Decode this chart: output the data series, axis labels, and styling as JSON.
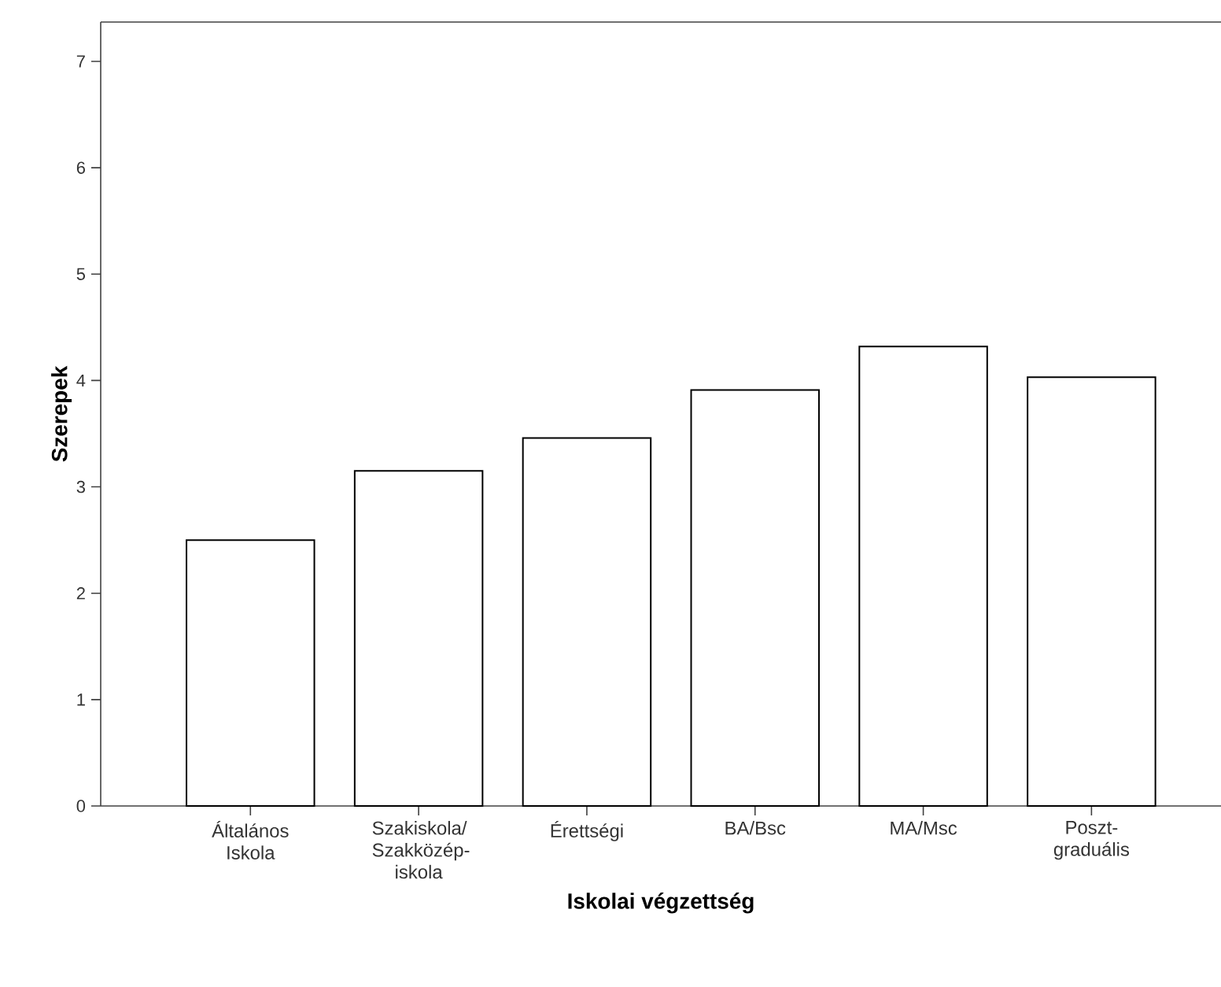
{
  "chart_data": {
    "type": "bar",
    "xlabel": "Iskolai végzettség",
    "ylabel": "Szerepek",
    "categories": [
      "Általános Iskola",
      "Szakiskola/ Szakközép- iskola",
      "Érettségi",
      "BA/Bsc",
      "MA/Msc",
      "Poszt- graduális"
    ],
    "values": [
      2.5,
      3.15,
      3.46,
      3.91,
      4.32,
      4.03
    ],
    "color": "#ffffff",
    "ylim": [
      0,
      7.37
    ],
    "yticks": [
      0,
      1,
      2,
      3,
      4,
      5,
      6,
      7
    ]
  }
}
